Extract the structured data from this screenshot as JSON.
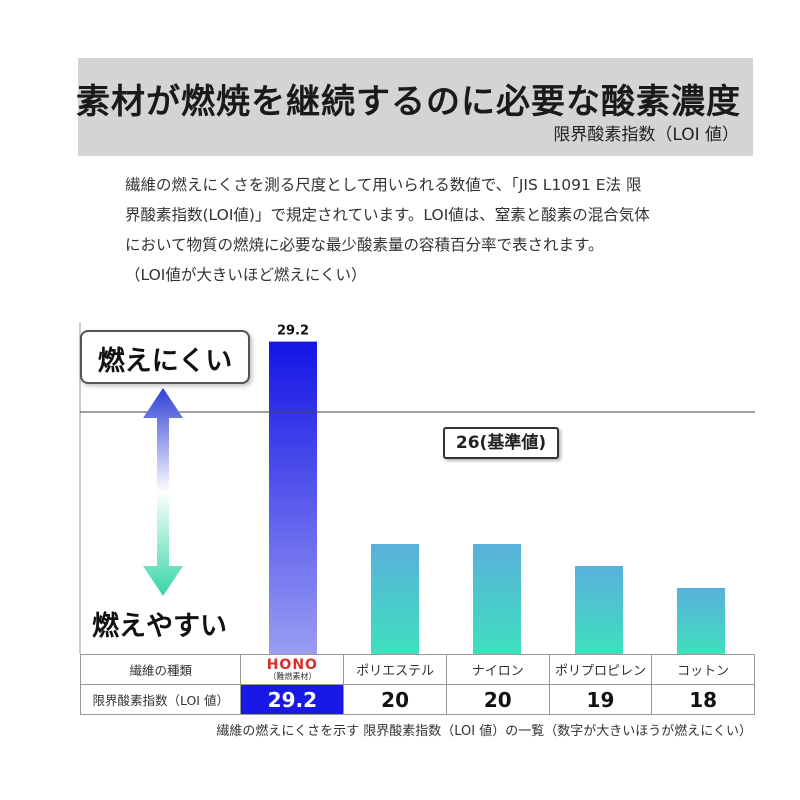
{
  "header": {
    "title": "素材が燃焼を継続するのに必要な酸素濃度",
    "subtitle": "限界酸素指数（LOI 値）"
  },
  "description": [
    "繊維の燃えにくさを測る尺度として用いられる数値で、「JIS L1091 E法 限",
    "界酸素指数(LOI値)」で規定されています。LOI値は、窒素と酸素の混合気体",
    "において物質の燃焼に必要な最少酸素量の容積百分率で表されます。",
    "（LOI値が大きいほど燃えにくい）"
  ],
  "scale": {
    "hard_label": "燃えにくい",
    "easy_label": "燃えやすい",
    "arrow_colors": [
      "#2f3fd6",
      "#ffffff",
      "#35d6a6"
    ]
  },
  "chart_data": {
    "type": "bar",
    "categories": [
      "HONO（難燃素材）",
      "ポリエステル",
      "ナイロン",
      "ポリプロピレン",
      "コットン"
    ],
    "values": [
      29.2,
      20,
      20,
      19,
      18
    ],
    "value_label": "29.2",
    "reference_line": {
      "value": 26,
      "label": "26(基準値)"
    },
    "ylim": [
      15,
      30
    ],
    "grid": false,
    "colors": {
      "hono_top": "#1414e6",
      "hono_bottom": "#9a9df2",
      "other_top": "#5ab0dc",
      "other_bottom": "#3ee0bd"
    }
  },
  "table": {
    "row1_header": "繊維の種類",
    "row2_header": "限界酸素指数（LOI 値）",
    "hono_logo": "HONO",
    "hono_sub": "（難燃素材）",
    "names": [
      "ポリエステル",
      "ナイロン",
      "ポリプロピレン",
      "コットン"
    ],
    "hono_value": "29.2",
    "values": [
      "20",
      "20",
      "19",
      "18"
    ]
  },
  "caption": "繊維の燃えにくさを示す 限界酸素指数（LOI 値）の一覧（数字が大きいほうが燃えにくい）"
}
